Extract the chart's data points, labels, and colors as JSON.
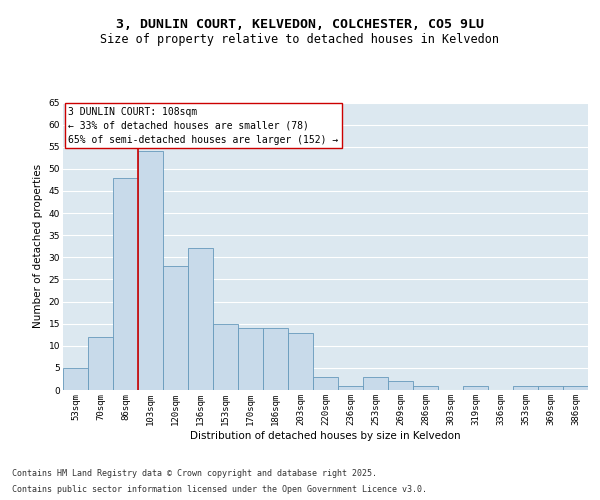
{
  "title": "3, DUNLIN COURT, KELVEDON, COLCHESTER, CO5 9LU",
  "subtitle": "Size of property relative to detached houses in Kelvedon",
  "xlabel": "Distribution of detached houses by size in Kelvedon",
  "ylabel": "Number of detached properties",
  "categories": [
    "53sqm",
    "70sqm",
    "86sqm",
    "103sqm",
    "120sqm",
    "136sqm",
    "153sqm",
    "170sqm",
    "186sqm",
    "203sqm",
    "220sqm",
    "236sqm",
    "253sqm",
    "269sqm",
    "286sqm",
    "303sqm",
    "319sqm",
    "336sqm",
    "353sqm",
    "369sqm",
    "386sqm"
  ],
  "values": [
    5,
    12,
    48,
    54,
    28,
    32,
    15,
    14,
    14,
    13,
    3,
    1,
    3,
    2,
    1,
    0,
    1,
    0,
    1,
    1,
    1
  ],
  "bar_color": "#c8daea",
  "bar_edge_color": "#6699bb",
  "vline_x_index": 3,
  "vline_color": "#cc0000",
  "annotation_text": "3 DUNLIN COURT: 108sqm\n← 33% of detached houses are smaller (78)\n65% of semi-detached houses are larger (152) →",
  "annotation_box_color": "#ffffff",
  "annotation_box_edge": "#cc0000",
  "ylim": [
    0,
    65
  ],
  "yticks": [
    0,
    5,
    10,
    15,
    20,
    25,
    30,
    35,
    40,
    45,
    50,
    55,
    60,
    65
  ],
  "bg_color": "#dce8f0",
  "grid_color": "#ffffff",
  "footer_line1": "Contains HM Land Registry data © Crown copyright and database right 2025.",
  "footer_line2": "Contains public sector information licensed under the Open Government Licence v3.0.",
  "title_fontsize": 9.5,
  "subtitle_fontsize": 8.5,
  "axis_label_fontsize": 7.5,
  "tick_fontsize": 6.5,
  "annotation_fontsize": 7,
  "footer_fontsize": 6
}
